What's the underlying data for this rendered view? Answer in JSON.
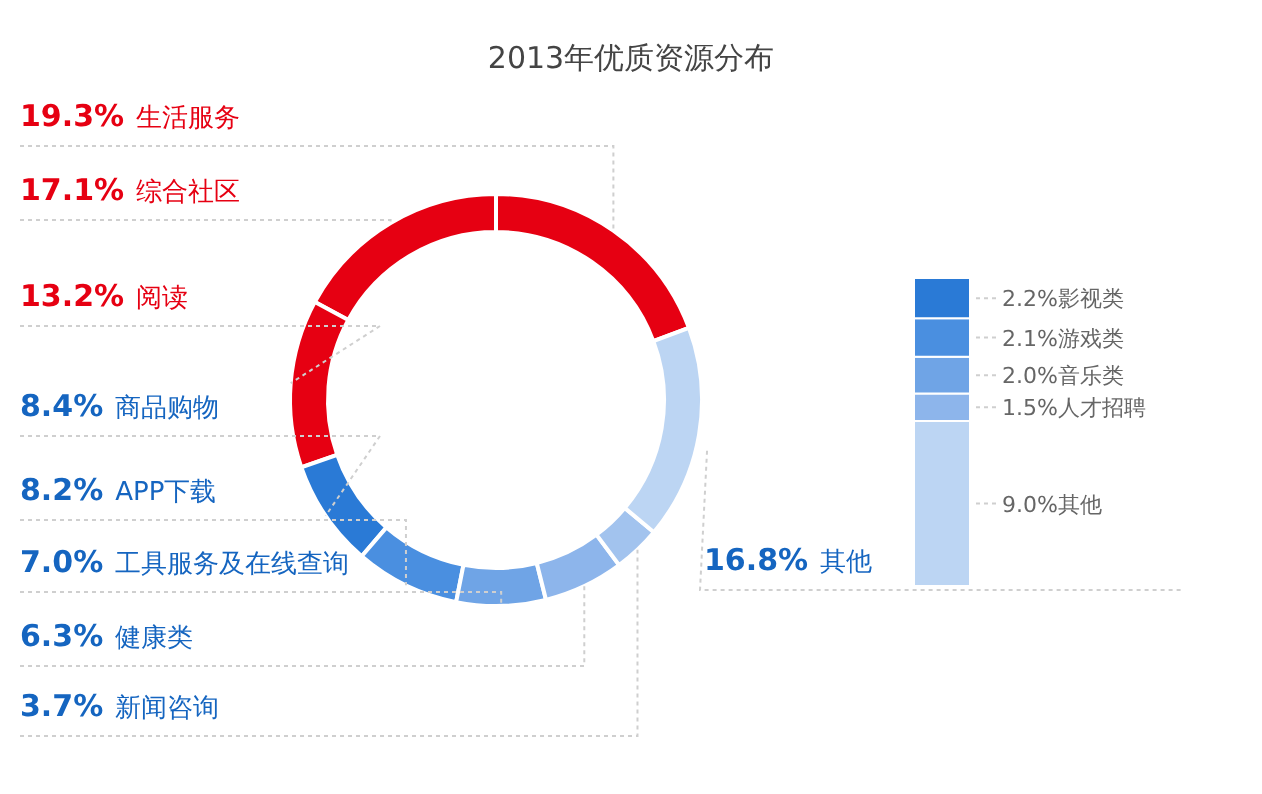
{
  "chart_data": [
    {
      "type": "donut",
      "title": "2013年优质资源分布",
      "categories": [
        "生活服务",
        "综合社区",
        "阅读",
        "商品购物",
        "APP下载",
        "工具服务及在线查询",
        "健康类",
        "新闻咨询",
        "其他"
      ],
      "values": [
        19.3,
        17.1,
        13.2,
        8.4,
        8.2,
        7.0,
        6.3,
        3.7,
        16.8
      ],
      "value_labels": [
        "19.3%",
        "17.1%",
        "13.2%",
        "8.4%",
        "8.2%",
        "7.0%",
        "6.3%",
        "3.7%",
        "16.8%"
      ],
      "colors": [
        "#e60012",
        "#e60012",
        "#e60012",
        "#2a7ad6",
        "#4a8fe0",
        "#6fa4e6",
        "#8db5eb",
        "#a2c3ee",
        "#bcd5f3"
      ]
    },
    {
      "type": "bar",
      "stacked": true,
      "categories": [
        null
      ],
      "series": [
        {
          "name": "其他",
          "color": "#bcd5f3",
          "values": [
            9.0
          ],
          "value_labels": [
            "9.0%"
          ]
        },
        {
          "name": "人才招聘",
          "color": "#8db5eb",
          "values": [
            1.5
          ],
          "value_labels": [
            "1.5%"
          ]
        },
        {
          "name": "音乐类",
          "color": "#6fa4e6",
          "values": [
            2.0
          ],
          "value_labels": [
            "2.0%"
          ]
        },
        {
          "name": "游戏类",
          "color": "#4a8fe0",
          "values": [
            2.1
          ],
          "value_labels": [
            "2.1%"
          ]
        },
        {
          "name": "影视类",
          "color": "#2a7ad6",
          "values": [
            2.2
          ],
          "value_labels": [
            "2.2%"
          ]
        }
      ]
    }
  ]
}
